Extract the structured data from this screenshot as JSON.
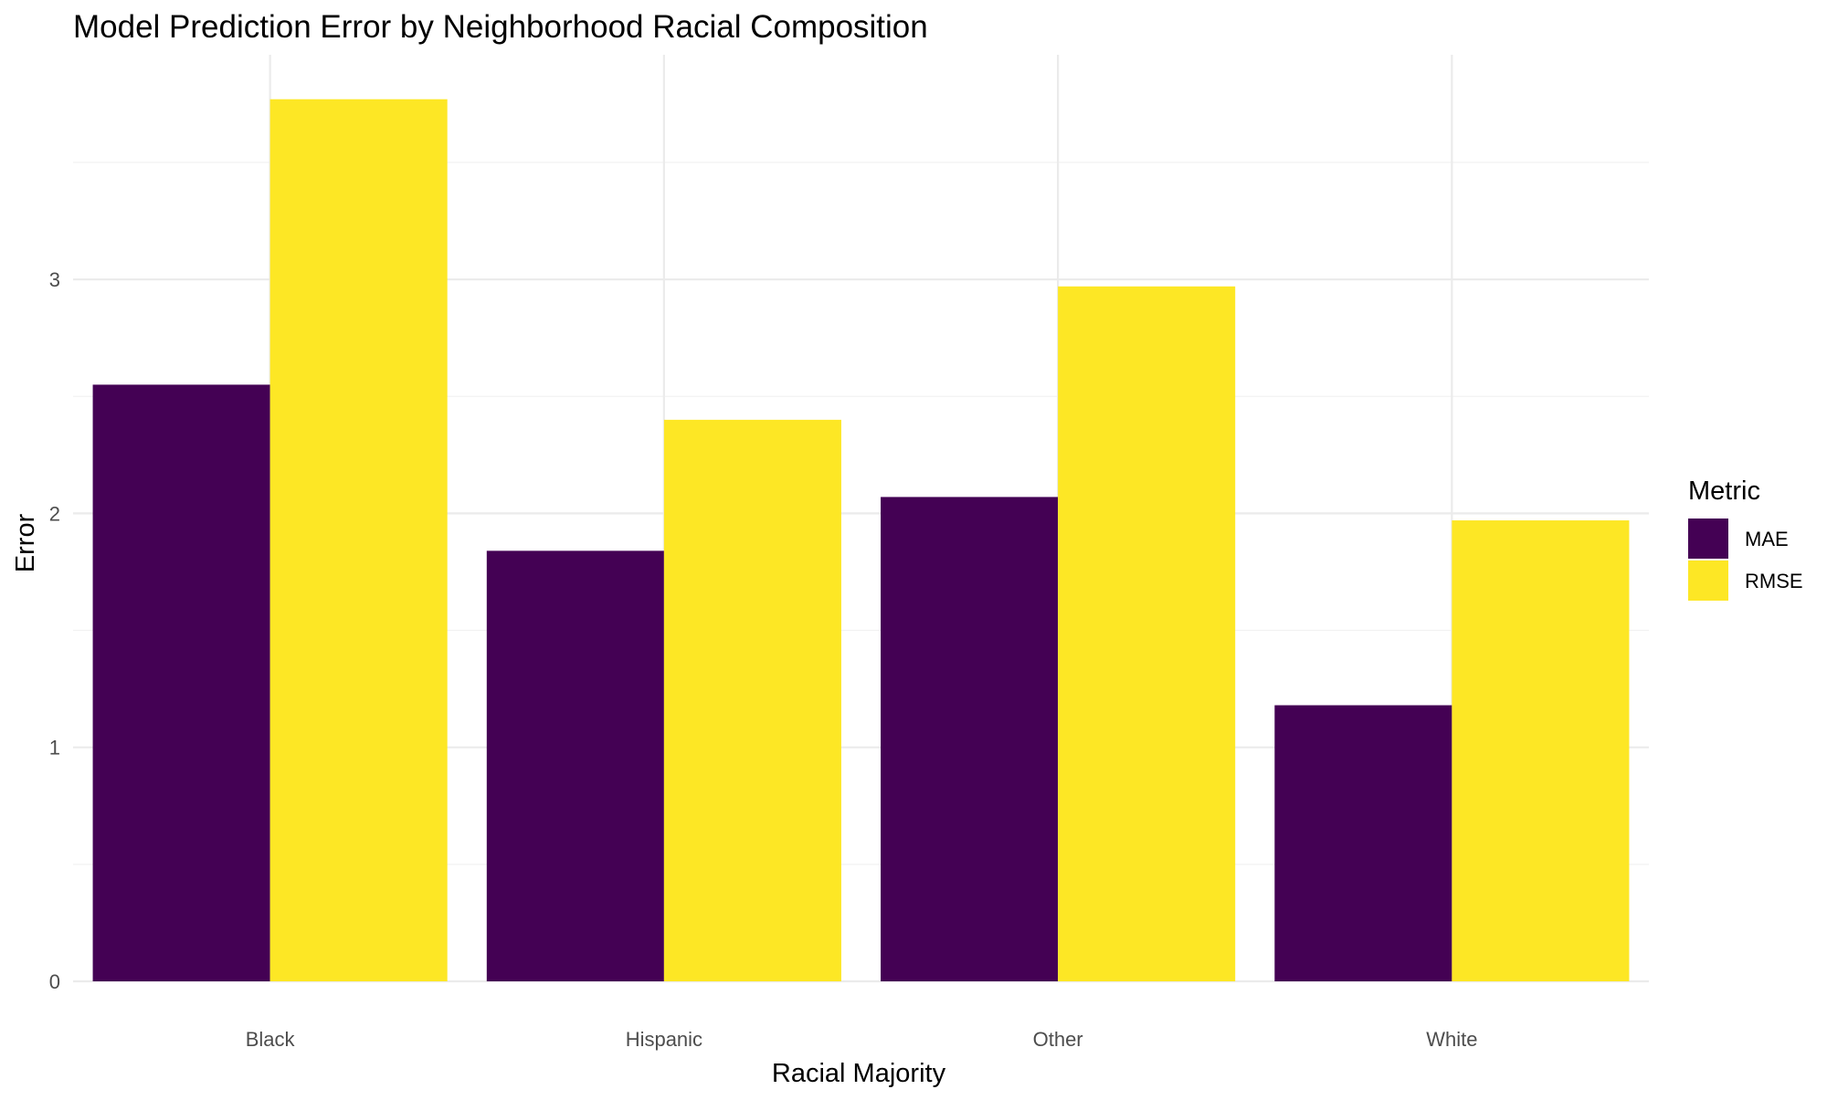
{
  "chart_data": {
    "type": "bar",
    "title": "Model Prediction Error by Neighborhood Racial Composition",
    "xlabel": "Racial Majority",
    "ylabel": "Error",
    "categories": [
      "Black",
      "Hispanic",
      "Other",
      "White"
    ],
    "series": [
      {
        "name": "MAE",
        "color": "#440154",
        "values": [
          2.55,
          1.84,
          2.07,
          1.18
        ]
      },
      {
        "name": "RMSE",
        "color": "#FDE725",
        "values": [
          3.77,
          2.4,
          2.97,
          1.97
        ]
      }
    ],
    "ylim": [
      0,
      3.96
    ],
    "yticks": [
      0,
      1,
      2,
      3
    ],
    "grid": true,
    "legend": {
      "title": "Metric",
      "position": "right"
    }
  }
}
